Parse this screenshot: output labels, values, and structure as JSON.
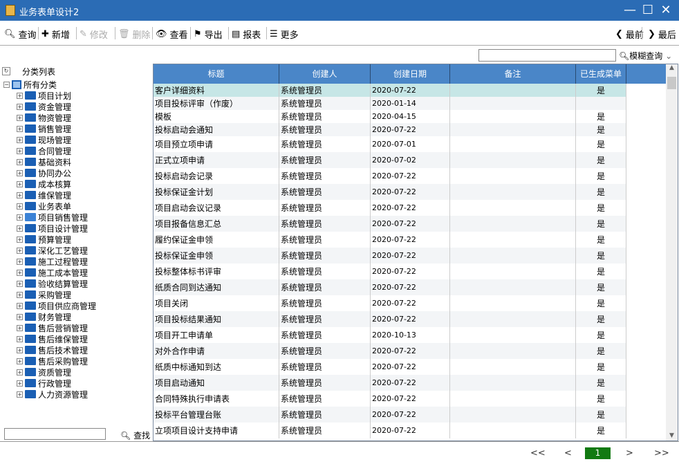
{
  "window": {
    "title": "业务表单设计2"
  },
  "toolbar": {
    "items": [
      {
        "label": "查询",
        "icon": "search-icon",
        "enabled": true
      },
      {
        "label": "新增",
        "icon": "plus-icon",
        "enabled": true
      },
      {
        "label": "修改",
        "icon": "edit-icon",
        "enabled": false
      },
      {
        "label": "删除",
        "icon": "trash-icon",
        "enabled": false
      },
      {
        "label": "查看",
        "icon": "eye-icon",
        "enabled": true
      },
      {
        "label": "导出",
        "icon": "export-icon",
        "enabled": true
      },
      {
        "label": "报表",
        "icon": "report-icon",
        "enabled": true
      },
      {
        "label": "更多",
        "icon": "list-icon",
        "enabled": true
      }
    ],
    "prev": "最前",
    "last": "最后"
  },
  "search": {
    "value": "",
    "fuzzy_label": "模糊查询"
  },
  "tree": {
    "title": "分类列表",
    "root": "所有分类",
    "items": [
      "项目计划",
      "资金管理",
      "物资管理",
      "销售管理",
      "现场管理",
      "合同管理",
      "基础资料",
      "协同办公",
      "成本核算",
      "维保管理",
      "业务表单",
      "项目销售管理",
      "项目设计管理",
      "预算管理",
      "深化工艺管理",
      "施工过程管理",
      "施工成本管理",
      "验收结算管理",
      "采购管理",
      "项目供应商管理",
      "财务管理",
      "售后营销管理",
      "售后维保管理",
      "售后技术管理",
      "售后采购管理",
      "资质管理",
      "行政管理",
      "人力资源管理"
    ],
    "open_item": "项目销售管理",
    "find_value": "",
    "find_label": "查找"
  },
  "table": {
    "columns": [
      "标题",
      "创建人",
      "创建日期",
      "备注",
      "已生成菜单"
    ],
    "rows": [
      [
        "客户详细资料",
        "系统管理员",
        "2020-07-22",
        "",
        "是"
      ],
      [
        "项目投标评审（作废）",
        "系统管理员",
        "2020-01-14",
        "",
        ""
      ],
      [
        "模板",
        "系统管理员",
        "2020-04-15",
        "",
        "是"
      ],
      [
        "投标启动会通知",
        "系统管理员",
        "2020-07-22",
        "",
        "是"
      ],
      [
        "项目预立项申请",
        "系统管理员",
        "2020-07-01",
        "",
        "是"
      ],
      [
        "正式立项申请",
        "系统管理员",
        "2020-07-02",
        "",
        "是"
      ],
      [
        "投标启动会记录",
        "系统管理员",
        "2020-07-22",
        "",
        "是"
      ],
      [
        "投标保证金计划",
        "系统管理员",
        "2020-07-22",
        "",
        "是"
      ],
      [
        "项目启动会议记录",
        "系统管理员",
        "2020-07-22",
        "",
        "是"
      ],
      [
        "项目报备信息汇总",
        "系统管理员",
        "2020-07-22",
        "",
        "是"
      ],
      [
        "履约保证金申领",
        "系统管理员",
        "2020-07-22",
        "",
        "是"
      ],
      [
        "投标保证金申领",
        "系统管理员",
        "2020-07-22",
        "",
        "是"
      ],
      [
        "投标整体标书评审",
        "系统管理员",
        "2020-07-22",
        "",
        "是"
      ],
      [
        "纸质合同到达通知",
        "系统管理员",
        "2020-07-22",
        "",
        "是"
      ],
      [
        "项目关闭",
        "系统管理员",
        "2020-07-22",
        "",
        "是"
      ],
      [
        "项目投标结果通知",
        "系统管理员",
        "2020-07-22",
        "",
        "是"
      ],
      [
        "项目开工申请单",
        "系统管理员",
        "2020-10-13",
        "",
        "是"
      ],
      [
        "对外合作申请",
        "系统管理员",
        "2020-07-22",
        "",
        "是"
      ],
      [
        "纸质中标通知到达",
        "系统管理员",
        "2020-07-22",
        "",
        "是"
      ],
      [
        "项目启动通知",
        "系统管理员",
        "2020-07-22",
        "",
        "是"
      ],
      [
        "合同特殊执行申请表",
        "系统管理员",
        "2020-07-22",
        "",
        "是"
      ],
      [
        "投标平台管理台账",
        "系统管理员",
        "2020-07-22",
        "",
        "是"
      ],
      [
        "立项项目设计支持申请",
        "系统管理员",
        "2020-07-22",
        "",
        "是"
      ]
    ],
    "selected_row": 0
  },
  "pagination": {
    "first": "<<",
    "prev": "<",
    "current": "1",
    "next": ">",
    "last": ">>"
  },
  "colors": {
    "titlebar": "#2b6cb5",
    "header": "#4a86c8",
    "selected": "#c6e6e6",
    "page": "#127a12"
  }
}
